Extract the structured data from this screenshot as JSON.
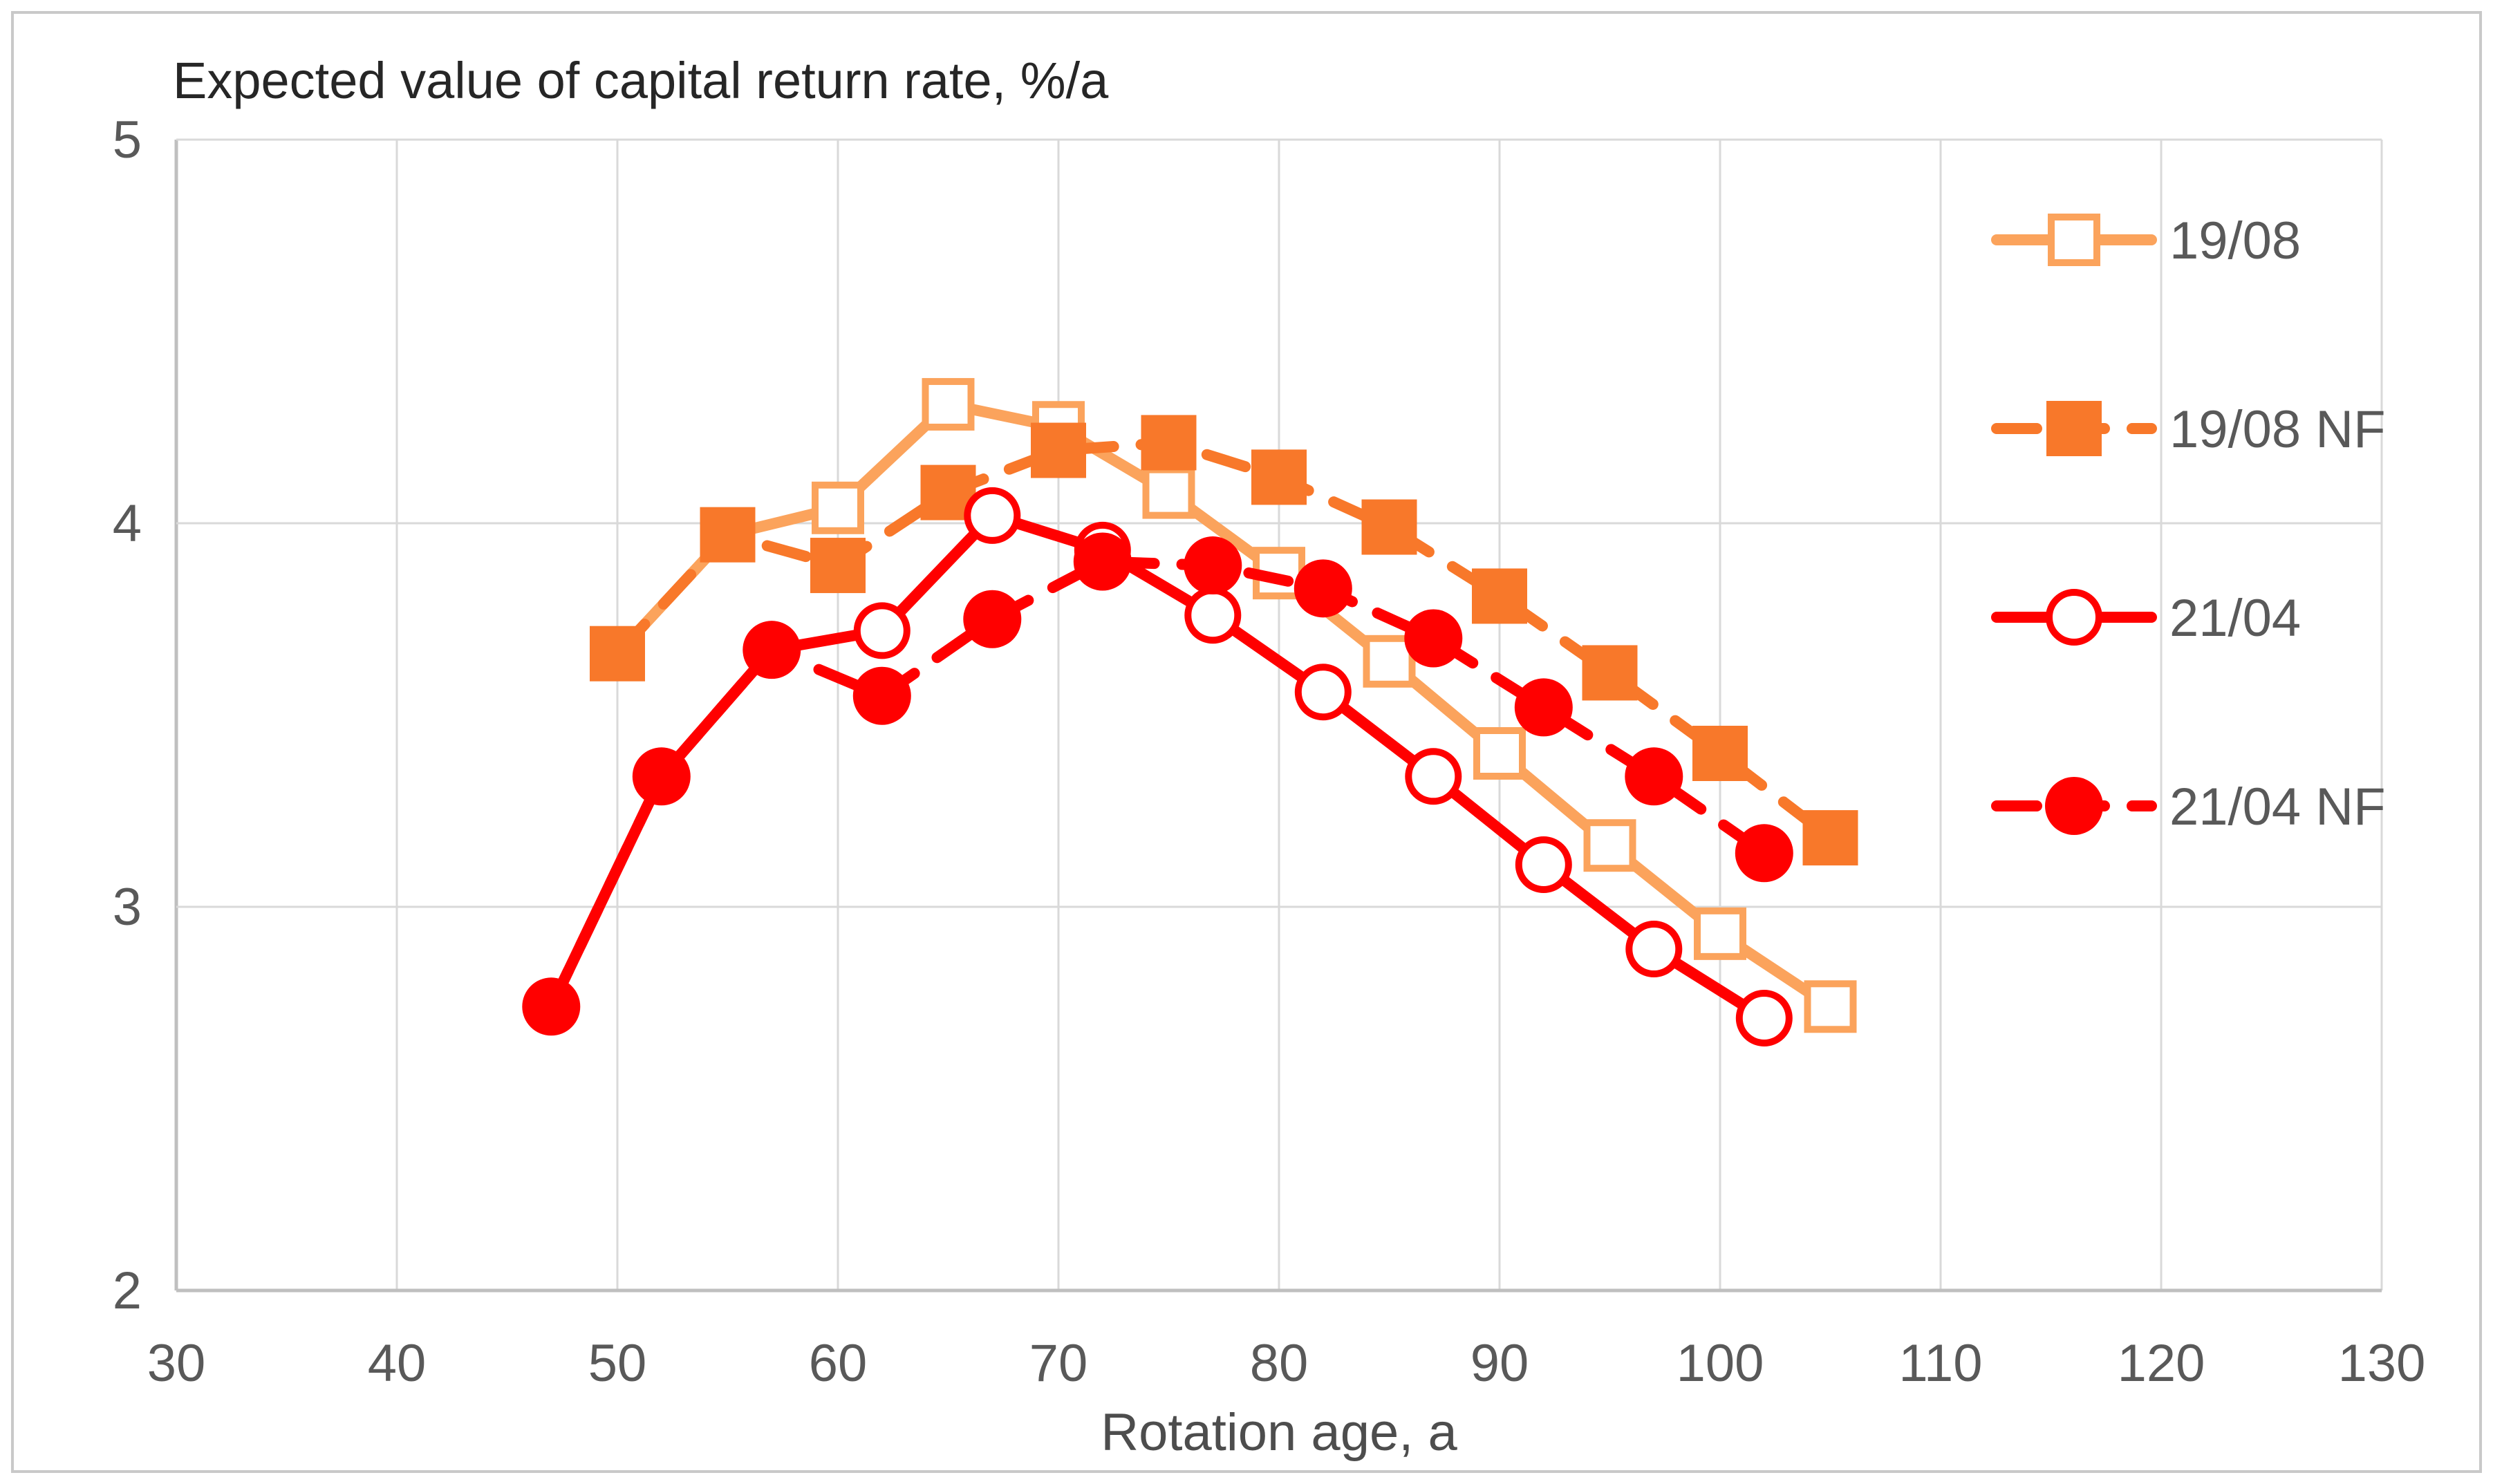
{
  "figure": {
    "type_note": "excel-style line chart screenshot"
  },
  "chart_data": {
    "type": "line",
    "title": "Expected value of capital return rate,  %/a",
    "xlabel": "Rotation age, a",
    "ylabel": "",
    "xlim": [
      30,
      130
    ],
    "ylim": [
      2,
      5
    ],
    "x_ticks": [
      30,
      40,
      50,
      60,
      70,
      80,
      90,
      100,
      110,
      120,
      130
    ],
    "y_ticks": [
      2,
      3,
      4,
      5
    ],
    "grid": true,
    "legend_position": "inside-right",
    "series": [
      {
        "name": "19/08",
        "color": "#FBA35C",
        "line_style": "solid",
        "marker": "open-square",
        "x": [
          50,
          55,
          60,
          65,
          70,
          75,
          80,
          85,
          90,
          95,
          100,
          105
        ],
        "y": [
          3.66,
          3.97,
          4.04,
          4.31,
          4.25,
          4.08,
          3.87,
          3.64,
          3.4,
          3.16,
          2.93,
          2.74
        ]
      },
      {
        "name": "19/08 NF",
        "color": "#F8782A",
        "line_style": "dashed",
        "marker": "filled-square",
        "x": [
          50,
          55,
          60,
          65,
          70,
          75,
          80,
          85,
          90,
          95,
          100,
          105
        ],
        "y": [
          3.66,
          3.97,
          3.89,
          4.08,
          4.19,
          4.21,
          4.12,
          3.99,
          3.81,
          3.61,
          3.4,
          3.18
        ]
      },
      {
        "name": "21/04",
        "color": "#FF0000",
        "line_style": "solid",
        "marker": "open-circle",
        "x": [
          47,
          52,
          57,
          62,
          67,
          72,
          77,
          82,
          87,
          92,
          97,
          102
        ],
        "y": [
          2.74,
          3.34,
          3.67,
          3.72,
          4.02,
          3.93,
          3.76,
          3.56,
          3.34,
          3.11,
          2.89,
          2.71
        ]
      },
      {
        "name": "21/04 NF",
        "color": "#FF0000",
        "line_style": "dashed",
        "marker": "filled-circle",
        "x": [
          47,
          52,
          57,
          62,
          67,
          72,
          77,
          82,
          87,
          92,
          97,
          102
        ],
        "y": [
          2.74,
          3.34,
          3.67,
          3.55,
          3.75,
          3.9,
          3.89,
          3.83,
          3.7,
          3.52,
          3.34,
          3.14
        ]
      }
    ],
    "colors": {
      "gridline": "#D9D9D9",
      "axis_line": "#BFBFBF",
      "outer_border": "#C9C9C9",
      "tick_text": "#595959",
      "title_text": "#262626",
      "background": "#FFFFFF"
    }
  }
}
